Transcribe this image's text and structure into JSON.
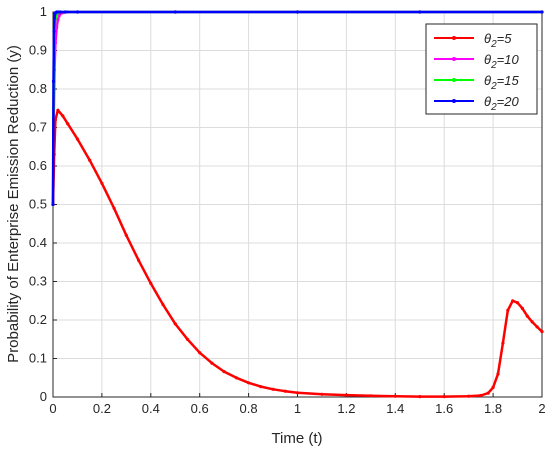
{
  "chart_data": {
    "type": "line",
    "title": "",
    "xlabel": "Time (t)",
    "ylabel": "Probability of Enterprise Emission Reduction (y)",
    "xlim": [
      0,
      2
    ],
    "ylim": [
      0,
      1
    ],
    "xticks": [
      "0",
      "0.2",
      "0.4",
      "0.6",
      "0.8",
      "1",
      "1.2",
      "1.4",
      "1.6",
      "1.8",
      "2"
    ],
    "yticks": [
      "0",
      "0.1",
      "0.2",
      "0.3",
      "0.4",
      "0.5",
      "0.6",
      "0.7",
      "0.8",
      "0.9",
      "1"
    ],
    "grid": true,
    "legend_position": "top-right",
    "series": [
      {
        "name": "θ2=5",
        "legend_sub": "2",
        "legend_value": "=5",
        "color": "#ff0000",
        "x": [
          0,
          0.005,
          0.01,
          0.02,
          0.04,
          0.06,
          0.1,
          0.15,
          0.2,
          0.25,
          0.3,
          0.35,
          0.4,
          0.45,
          0.5,
          0.55,
          0.6,
          0.65,
          0.7,
          0.75,
          0.8,
          0.85,
          0.9,
          0.95,
          1.0,
          1.1,
          1.2,
          1.3,
          1.4,
          1.5,
          1.6,
          1.7,
          1.75,
          1.78,
          1.8,
          1.82,
          1.84,
          1.86,
          1.88,
          1.9,
          1.92,
          1.94,
          1.96,
          1.98,
          2.0
        ],
        "y": [
          0.5,
          0.63,
          0.72,
          0.745,
          0.73,
          0.71,
          0.67,
          0.615,
          0.555,
          0.49,
          0.42,
          0.355,
          0.295,
          0.24,
          0.19,
          0.15,
          0.115,
          0.088,
          0.066,
          0.05,
          0.037,
          0.027,
          0.02,
          0.015,
          0.011,
          0.007,
          0.005,
          0.003,
          0.002,
          0.001,
          0.001,
          0.002,
          0.004,
          0.01,
          0.025,
          0.06,
          0.14,
          0.225,
          0.25,
          0.245,
          0.23,
          0.21,
          0.195,
          0.182,
          0.17
        ]
      },
      {
        "name": "θ2=10",
        "legend_sub": "2",
        "legend_value": "=10",
        "color": "#ff00ff",
        "x": [
          0,
          0.003,
          0.006,
          0.01,
          0.015,
          0.02,
          0.025,
          0.03,
          0.04,
          0.06,
          0.1,
          0.5,
          1.0,
          1.5,
          2.0
        ],
        "y": [
          0.5,
          0.72,
          0.85,
          0.92,
          0.96,
          0.98,
          0.99,
          0.995,
          0.998,
          1,
          1,
          1,
          1,
          1,
          1
        ]
      },
      {
        "name": "θ2=15",
        "legend_sub": "2",
        "legend_value": "=15",
        "color": "#00ff00",
        "x": [
          0,
          0.002,
          0.004,
          0.007,
          0.01,
          0.015,
          0.02,
          0.03,
          0.05,
          0.1,
          0.5,
          1.0,
          1.5,
          2.0
        ],
        "y": [
          0.5,
          0.75,
          0.9,
          0.96,
          0.985,
          0.995,
          0.998,
          1,
          1,
          1,
          1,
          1,
          1,
          1
        ]
      },
      {
        "name": "θ2=20",
        "legend_sub": "2",
        "legend_value": "=20",
        "color": "#0000ff",
        "x": [
          0,
          0.002,
          0.004,
          0.006,
          0.008,
          0.01,
          0.015,
          0.02,
          0.03,
          0.05,
          0.1,
          0.5,
          1.0,
          1.5,
          2.0
        ],
        "y": [
          0.5,
          0.82,
          0.95,
          0.985,
          0.995,
          0.998,
          1,
          1,
          1,
          1,
          1,
          1,
          1,
          1,
          1
        ]
      }
    ]
  }
}
